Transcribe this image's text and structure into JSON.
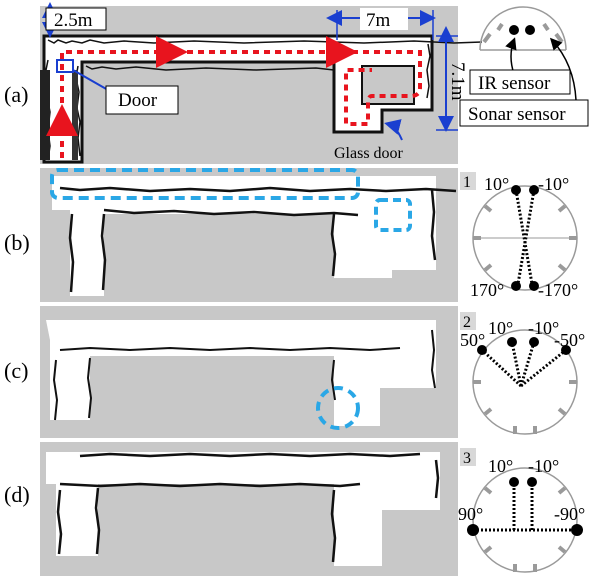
{
  "rows": [
    {
      "id": "a",
      "label": "(a)"
    },
    {
      "id": "b",
      "label": "(b)"
    },
    {
      "id": "c",
      "label": "(c)"
    },
    {
      "id": "d",
      "label": "(d)"
    }
  ],
  "map_a": {
    "width_label": "2.5m",
    "length_label": "7m",
    "height_label": "7.1m",
    "door_label": "Door",
    "glass_door_label": "Glass door"
  },
  "sensor_legend": {
    "ir_label": "IR sensor",
    "sonar_label": "Sonar sensor"
  },
  "configs": [
    {
      "number": "1",
      "angles": [
        "10°",
        "-10°",
        "170°",
        "-170°"
      ]
    },
    {
      "number": "2",
      "angles": [
        "10°",
        "-10°",
        "50°",
        "-50°"
      ]
    },
    {
      "number": "3",
      "angles": [
        "10°",
        "-10°",
        "90°",
        "-90°"
      ]
    }
  ],
  "colors": {
    "map_bg": "#c8c8c8",
    "path": "#e8141e",
    "highlight": "#2aa7e6",
    "door_marker": "#1a3fd0",
    "sonar": "#9a9a9a"
  }
}
